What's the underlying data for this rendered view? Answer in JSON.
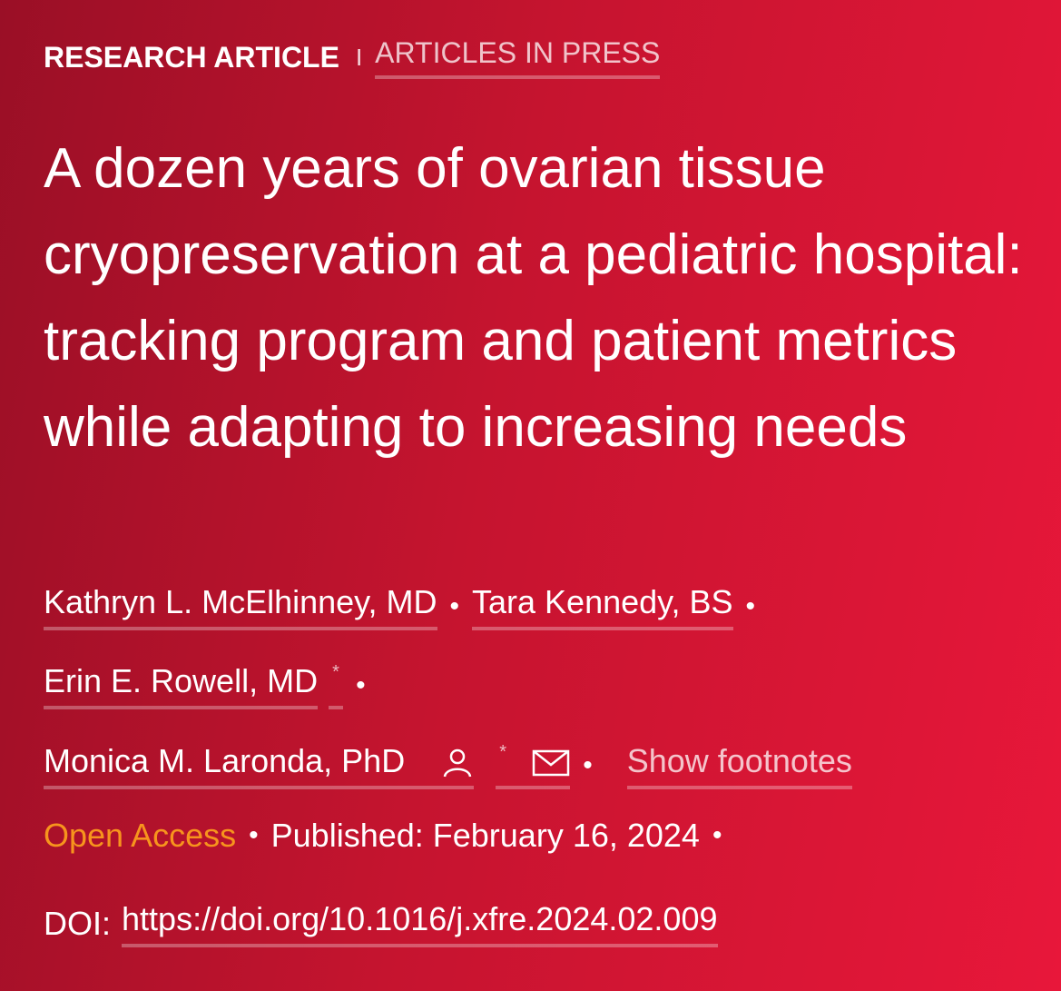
{
  "header": {
    "type": "RESEARCH ARTICLE",
    "separator": "I",
    "status": "ARTICLES IN PRESS"
  },
  "title": "A dozen years of ovarian tissue cryopreservation at a pediatric hospital: tracking program and patient metrics while adapting to increasing needs",
  "bullet": "•",
  "authors": [
    {
      "name": "Kathryn L. McElhinney, MD"
    },
    {
      "name": "Tara Kennedy, BS"
    },
    {
      "name": "Erin E. Rowell, MD",
      "marker": "*"
    },
    {
      "name": "Monica M. Laronda, PhD",
      "marker": "*"
    }
  ],
  "footnotes_link": "Show footnotes",
  "access": "Open Access",
  "published": "Published: February 16, 2024",
  "doi_label": "DOI:",
  "doi": "https://doi.org/10.1016/j.xfre.2024.02.009"
}
